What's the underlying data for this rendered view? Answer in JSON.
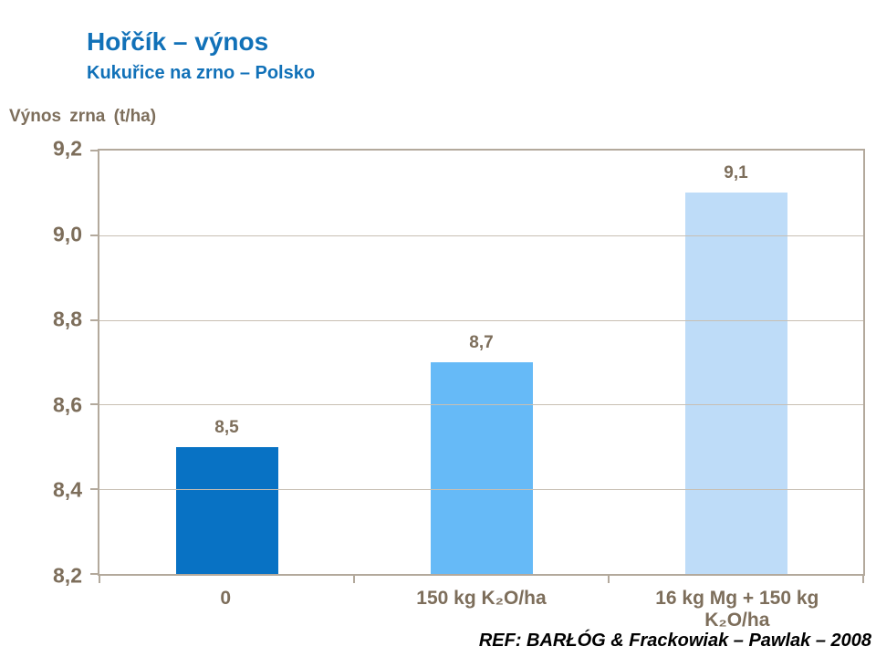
{
  "header": {
    "title": "Hořčík – výnos",
    "subtitle": "Kukuřice na zrno – Polsko"
  },
  "chart_data": {
    "type": "bar",
    "title": "Hořčík – výnos",
    "subtitle": "Kukuřice na zrno – Polsko",
    "ylabel": "Výnos zrna (t/ha)",
    "xlabel": "",
    "categories": [
      "0",
      "150 kg K₂O/ha",
      "16 kg Mg + 150 kg K₂O/ha"
    ],
    "values": [
      8.5,
      8.7,
      9.1
    ],
    "value_labels": [
      "8,5",
      "8,7",
      "9,1"
    ],
    "ylim": [
      8.2,
      9.2
    ],
    "ytick_values": [
      9.2,
      9.0,
      8.8,
      8.6,
      8.4,
      8.2
    ],
    "ytick_labels": [
      "9,2",
      "9,0",
      "8,8",
      "8,6",
      "8,4",
      "8,2"
    ],
    "grid": true,
    "legend_position": "none",
    "bar_colors": [
      "#0872C4",
      "#66BAF7",
      "#BEDCF8"
    ]
  },
  "footer": {
    "reference": "REF: BARŁÓG & Frackowiak – Pawlak – 2008"
  },
  "colors": {
    "title_blue": "#1171B8",
    "axis_text_brown": "#7D6E5B",
    "axis_line": "#B3A99C",
    "gridline": "#C8BFB3",
    "reference_black": "#000000"
  }
}
